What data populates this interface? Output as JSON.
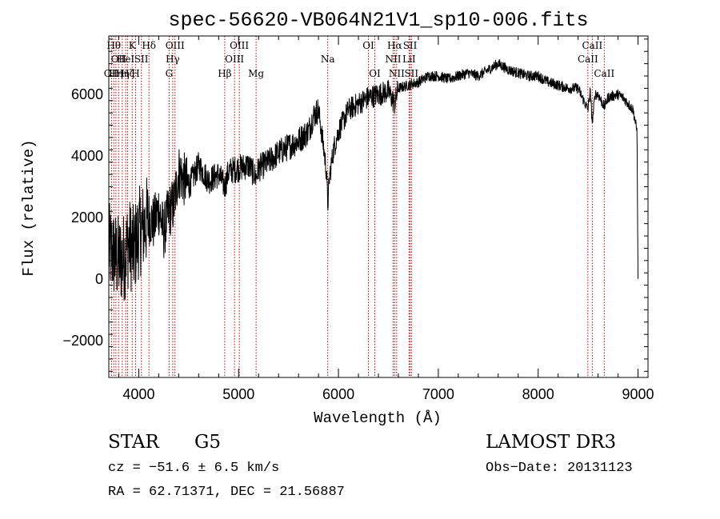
{
  "chart_data": {
    "type": "line",
    "title": "spec-56620-VB064N21V1_sp10-006.fits",
    "xlabel": "Wavelength (Å)",
    "ylabel": "Flux (relative)",
    "xlim": [
      3700,
      9100
    ],
    "ylim": [
      -3200,
      7900
    ],
    "xticks": [
      {
        "value": 4000,
        "label": "4000"
      },
      {
        "value": 5000,
        "label": "5000"
      },
      {
        "value": 6000,
        "label": "6000"
      },
      {
        "value": 7000,
        "label": "7000"
      },
      {
        "value": 8000,
        "label": "8000"
      },
      {
        "value": 9000,
        "label": "9000"
      }
    ],
    "yticks": [
      {
        "value": -2000,
        "label": "−2000"
      },
      {
        "value": 0,
        "label": "0"
      },
      {
        "value": 2000,
        "label": "2000"
      },
      {
        "value": 4000,
        "label": "4000"
      },
      {
        "value": 6000,
        "label": "6000"
      }
    ],
    "series": [
      {
        "name": "flux",
        "x": [
          3700,
          3750,
          3800,
          3850,
          3900,
          3950,
          4000,
          4050,
          4100,
          4150,
          4200,
          4250,
          4300,
          4350,
          4400,
          4500,
          4600,
          4700,
          4800,
          4861,
          4900,
          5000,
          5100,
          5175,
          5200,
          5300,
          5400,
          5500,
          5600,
          5700,
          5750,
          5800,
          5850,
          5880,
          5893,
          5910,
          5950,
          6000,
          6100,
          6200,
          6300,
          6400,
          6500,
          6563,
          6600,
          6700,
          6800,
          6900,
          7000,
          7100,
          7200,
          7300,
          7400,
          7500,
          7600,
          7700,
          7800,
          7900,
          8000,
          8100,
          8200,
          8300,
          8400,
          8498,
          8520,
          8542,
          8570,
          8600,
          8662,
          8700,
          8800,
          8850,
          8900,
          8950,
          8990,
          9000
        ],
        "y": [
          1000,
          800,
          600,
          700,
          1200,
          900,
          1500,
          1700,
          2000,
          1800,
          2300,
          1500,
          2200,
          2400,
          3500,
          3000,
          3700,
          3200,
          3400,
          3000,
          3500,
          3600,
          3700,
          3300,
          3600,
          3800,
          4100,
          4300,
          4500,
          4800,
          5300,
          5500,
          4300,
          3500,
          2400,
          3300,
          4200,
          4800,
          5500,
          5700,
          5900,
          6000,
          6100,
          5700,
          6200,
          6300,
          6400,
          6600,
          6600,
          6500,
          6600,
          6700,
          6600,
          6800,
          7000,
          6800,
          6700,
          6600,
          6600,
          6400,
          6300,
          6200,
          6200,
          5500,
          6100,
          5100,
          6000,
          6000,
          5600,
          5900,
          6000,
          5900,
          5700,
          5500,
          4800,
          0
        ]
      }
    ],
    "line_markers": [
      {
        "wave": 3727,
        "label": "OII",
        "row": 3
      },
      {
        "wave": 3750,
        "label": "Hθ",
        "row": 1
      },
      {
        "wave": 3771,
        "label": "Hη",
        "row": 3
      },
      {
        "wave": 3798,
        "label": "OII",
        "row": 2
      },
      {
        "wave": 3835,
        "label": "Hη",
        "row": 3
      },
      {
        "wave": 3869,
        "label": "HeI",
        "row": 2
      },
      {
        "wave": 3889,
        "label": "Hζ",
        "row": 3
      },
      {
        "wave": 3934,
        "label": "K",
        "row": 1
      },
      {
        "wave": 3968,
        "label": "H",
        "row": 3
      },
      {
        "wave": 4026,
        "label": "SII",
        "row": 2
      },
      {
        "wave": 4102,
        "label": "Hδ",
        "row": 1
      },
      {
        "wave": 4304,
        "label": "G",
        "row": 3
      },
      {
        "wave": 4340,
        "label": "Hγ",
        "row": 2
      },
      {
        "wave": 4363,
        "label": "OIII",
        "row": 1
      },
      {
        "wave": 4861,
        "label": "Hβ",
        "row": 3
      },
      {
        "wave": 4959,
        "label": "OIII",
        "row": 2
      },
      {
        "wave": 5007,
        "label": "OIII",
        "row": 1
      },
      {
        "wave": 5175,
        "label": "Mg",
        "row": 3
      },
      {
        "wave": 5893,
        "label": "Na",
        "row": 2
      },
      {
        "wave": 6300,
        "label": "OI",
        "row": 1
      },
      {
        "wave": 6364,
        "label": "OI",
        "row": 3
      },
      {
        "wave": 6548,
        "label": "NII",
        "row": 2
      },
      {
        "wave": 6563,
        "label": "Hα",
        "row": 1
      },
      {
        "wave": 6583,
        "label": "NII",
        "row": 3
      },
      {
        "wave": 6707,
        "label": "LiI",
        "row": 2
      },
      {
        "wave": 6717,
        "label": "SII",
        "row": 1
      },
      {
        "wave": 6731,
        "label": "SII",
        "row": 3
      },
      {
        "wave": 8498,
        "label": "CaII",
        "row": 2
      },
      {
        "wave": 8542,
        "label": "CaII",
        "row": 1
      },
      {
        "wave": 8662,
        "label": "CaII",
        "row": 3
      }
    ]
  },
  "info": {
    "class": "STAR",
    "subclass": "G5",
    "survey": "LAMOST DR3",
    "cz": "cz = −51.6 ± 6.5 km/s",
    "obs_date": "Obs−Date: 20131123",
    "coords": "RA =  62.71371, DEC =  21.56887"
  },
  "colors": {
    "spectrum": "#000000",
    "markers": "#c00000",
    "axes": "#000000",
    "background": "#ffffff"
  }
}
